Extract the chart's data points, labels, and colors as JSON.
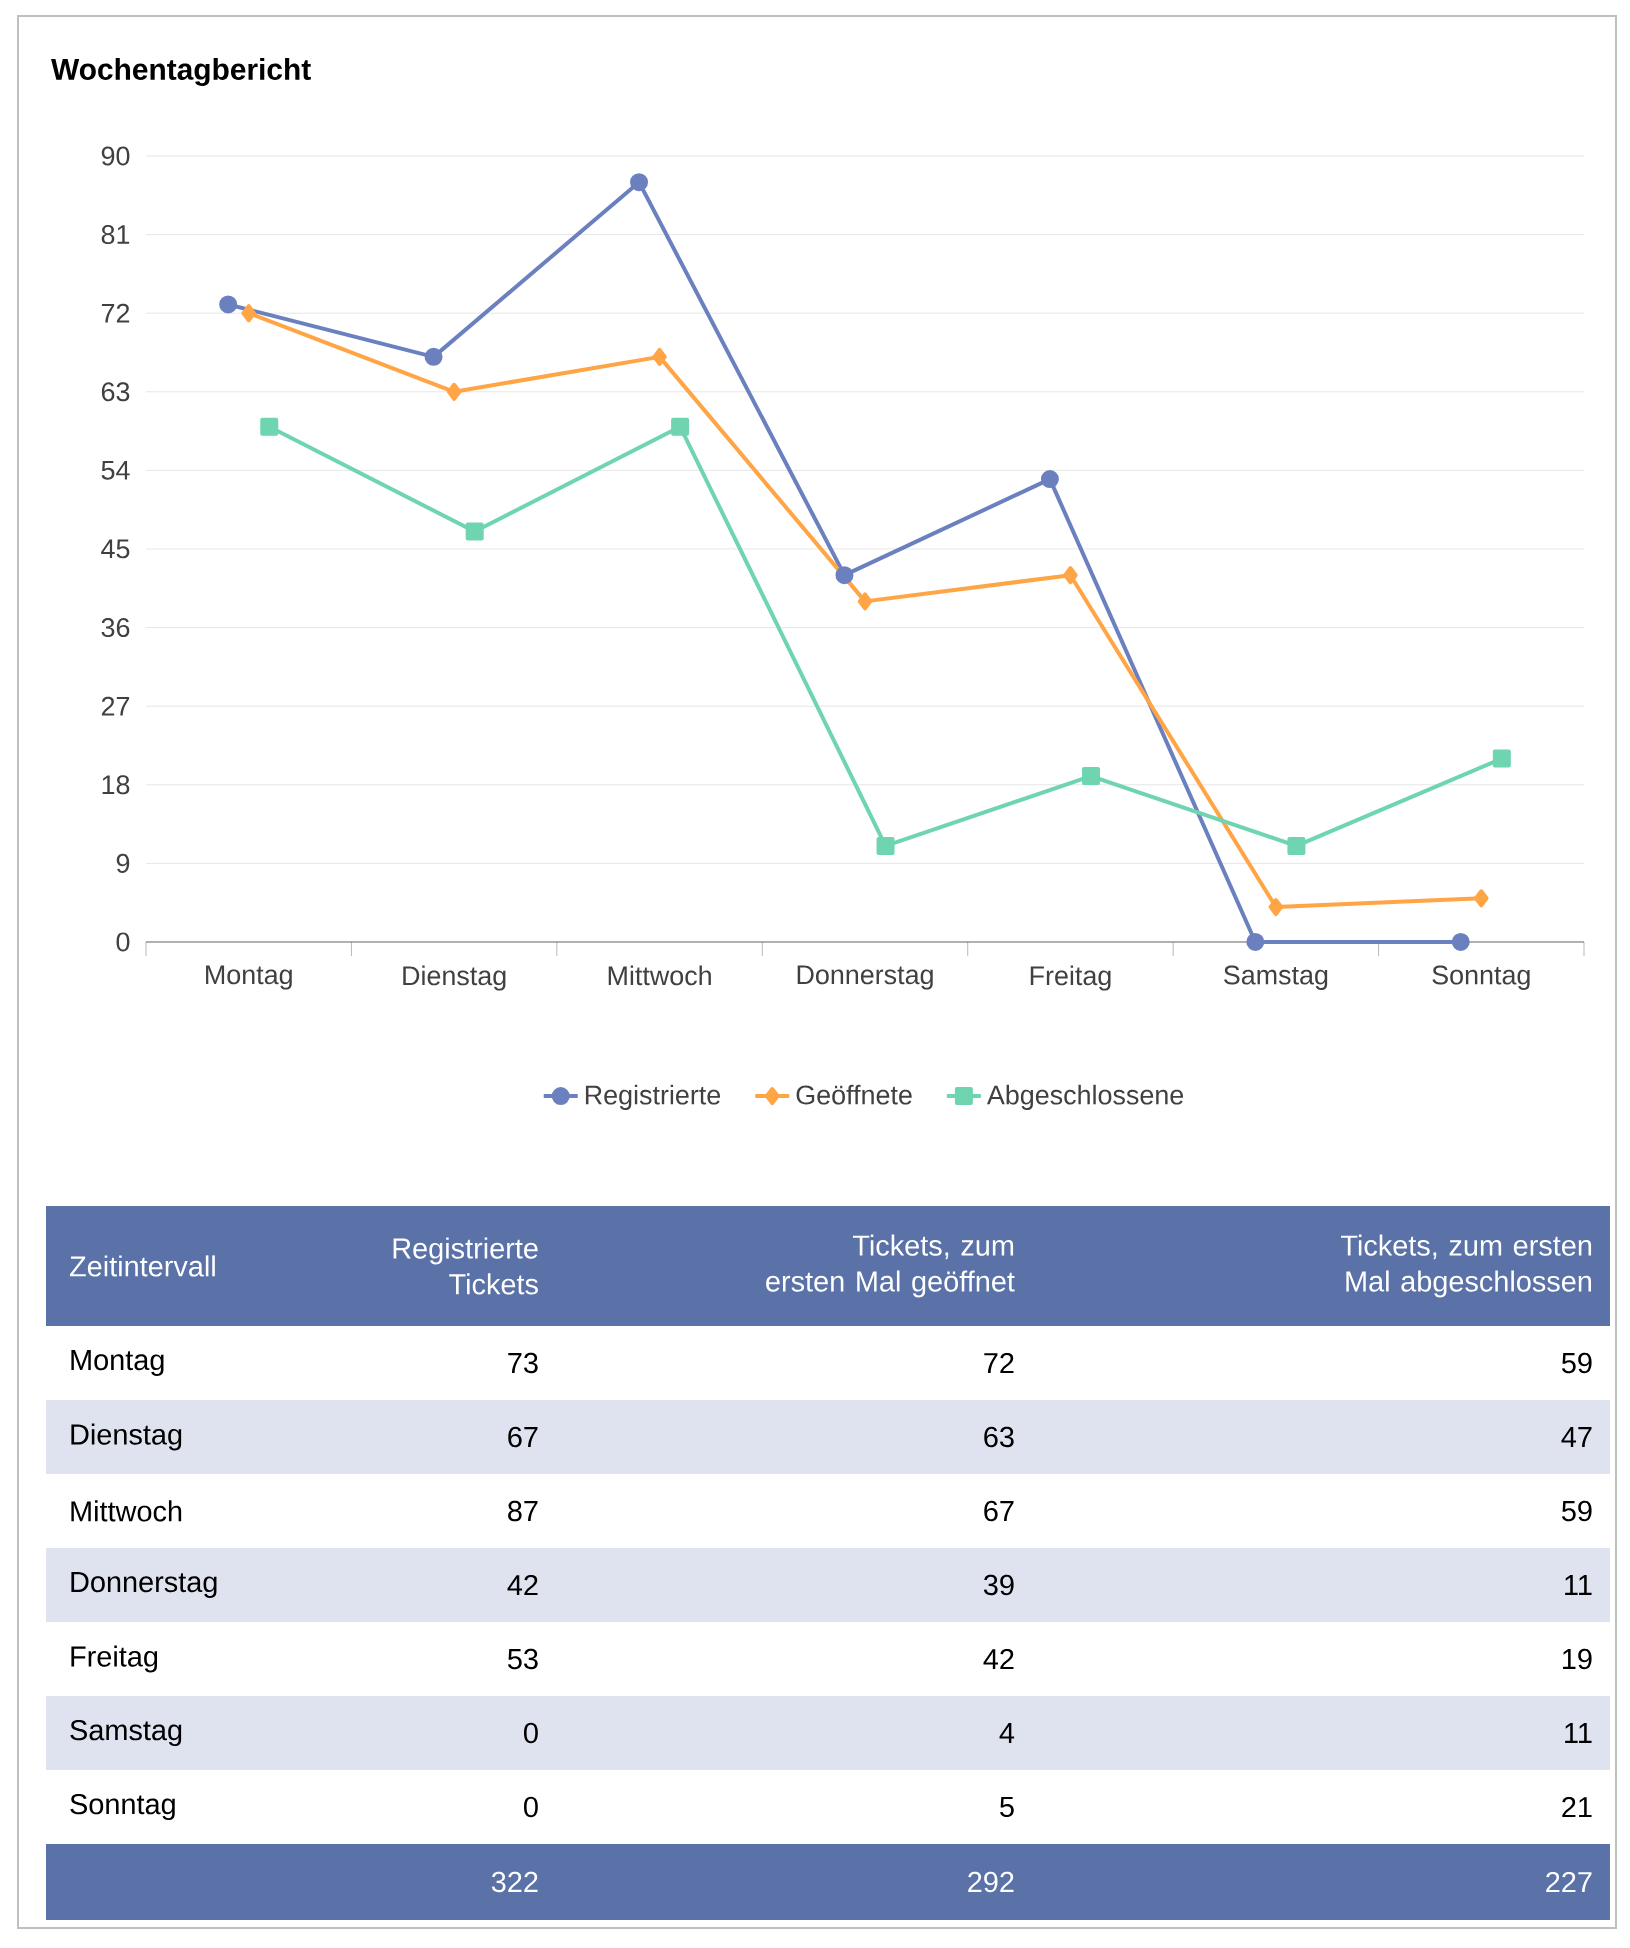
{
  "chart_data": {
    "type": "line",
    "title": "Wochentagbericht",
    "categories": [
      "Montag",
      "Dienstag",
      "Mittwoch",
      "Donnerstag",
      "Freitag",
      "Samstag",
      "Sonntag"
    ],
    "series": [
      {
        "name": "Registrierte",
        "color": "#6b80be",
        "marker": "circle",
        "values": [
          73,
          67,
          87,
          42,
          53,
          0,
          0
        ]
      },
      {
        "name": "Geöffnete",
        "color": "#ffa545",
        "marker": "diamond",
        "values": [
          72,
          63,
          67,
          39,
          42,
          4,
          5
        ]
      },
      {
        "name": "Abgeschlossene",
        "color": "#6fd4b0",
        "marker": "square",
        "values": [
          59,
          47,
          59,
          11,
          19,
          11,
          21
        ]
      }
    ],
    "ylim": [
      0,
      90
    ],
    "yticks": [
      0,
      9,
      18,
      27,
      36,
      45,
      54,
      63,
      72,
      81,
      90
    ],
    "grid": "y",
    "legend": "bottom",
    "annotations": [
      "Zeitintervall",
      "Registrierte Tickets",
      "Tickets, zum ersten Mal geöffnet",
      "Tickets, zum ersten Mal abgeschlossen",
      "73",
      "72",
      "59",
      "67",
      "63",
      "47",
      "87",
      "67",
      "59",
      "42",
      "39",
      "11",
      "53",
      "42",
      "19",
      "0",
      "4",
      "11",
      "0",
      "5",
      "21",
      "322",
      "292",
      "227"
    ]
  }
}
